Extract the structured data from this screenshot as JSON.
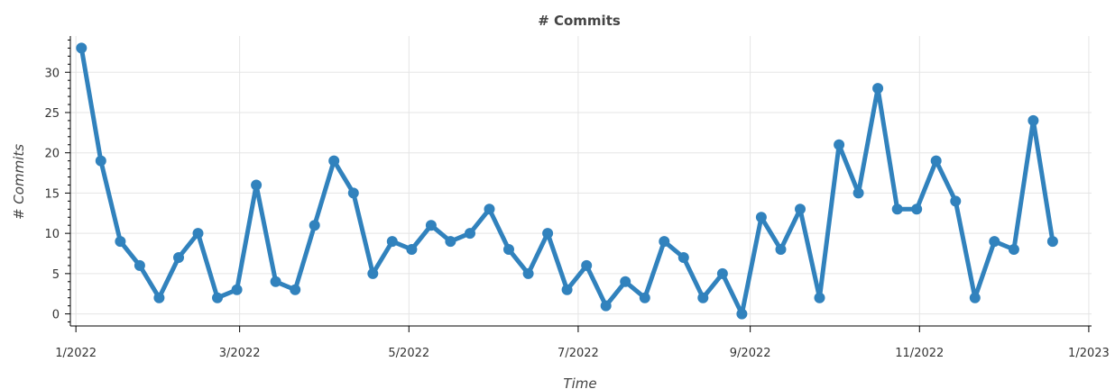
{
  "chart_data": {
    "type": "line",
    "title": "# Commits",
    "xlabel": "Time",
    "ylabel": "# Commits",
    "ylim": [
      -1.5,
      34.5
    ],
    "yticks": [
      0,
      5,
      10,
      15,
      20,
      25,
      30
    ],
    "xticks": [
      "2022-01-01",
      "2022-03-01",
      "2022-05-01",
      "2022-07-01",
      "2022-09-01",
      "2022-11-01",
      "2023-01-01"
    ],
    "xtick_labels": [
      "1/2022",
      "3/2022",
      "5/2022",
      "7/2022",
      "9/2022",
      "11/2022",
      "1/2023"
    ],
    "xlim": [
      "2021-12-30",
      "2023-01-02"
    ],
    "color": "#3182bd",
    "grid": true,
    "x": [
      "2022-01-03",
      "2022-01-10",
      "2022-01-17",
      "2022-01-24",
      "2022-01-31",
      "2022-02-07",
      "2022-02-14",
      "2022-02-21",
      "2022-02-28",
      "2022-03-07",
      "2022-03-14",
      "2022-03-21",
      "2022-03-28",
      "2022-04-04",
      "2022-04-11",
      "2022-04-18",
      "2022-04-25",
      "2022-05-02",
      "2022-05-09",
      "2022-05-16",
      "2022-05-23",
      "2022-05-30",
      "2022-06-06",
      "2022-06-13",
      "2022-06-20",
      "2022-06-27",
      "2022-07-04",
      "2022-07-11",
      "2022-07-18",
      "2022-07-25",
      "2022-08-01",
      "2022-08-08",
      "2022-08-15",
      "2022-08-22",
      "2022-08-29",
      "2022-09-05",
      "2022-09-12",
      "2022-09-19",
      "2022-09-26",
      "2022-10-03",
      "2022-10-10",
      "2022-10-17",
      "2022-10-24",
      "2022-10-31",
      "2022-11-07",
      "2022-11-14",
      "2022-11-21",
      "2022-11-28",
      "2022-12-05",
      "2022-12-12",
      "2022-12-19"
    ],
    "series": [
      {
        "values": [
          33,
          19,
          9,
          6,
          2,
          7,
          10,
          2,
          3,
          16,
          4,
          3,
          11,
          19,
          15,
          5,
          9,
          8,
          11,
          9,
          10,
          13,
          8,
          5,
          10,
          3,
          6,
          1,
          4,
          2,
          9,
          7,
          2,
          5,
          0,
          12,
          8,
          13,
          2,
          21,
          15,
          28,
          13,
          13,
          19,
          14,
          2,
          9,
          8,
          24,
          9
        ]
      }
    ]
  }
}
